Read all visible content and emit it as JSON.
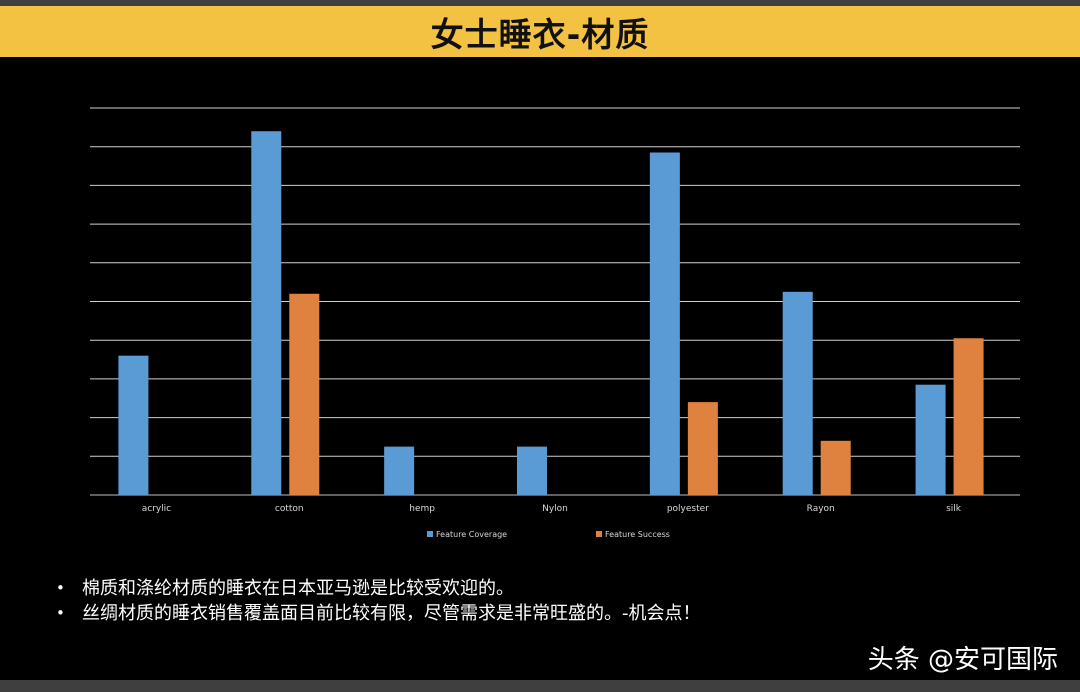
{
  "title": "女士睡衣-材质",
  "chart_data": {
    "type": "bar",
    "categories": [
      "acrylic",
      "cotton",
      "hemp",
      "Nylon",
      "polyester",
      "Rayon",
      "silk"
    ],
    "series": [
      {
        "name": "Feature Coverage",
        "color": "#5b9bd5",
        "values": [
          3.6,
          9.4,
          1.25,
          1.25,
          8.85,
          5.25,
          2.85
        ]
      },
      {
        "name": "Feature Success",
        "color": "#e0823f",
        "values": [
          null,
          5.2,
          null,
          null,
          2.4,
          1.4,
          4.05
        ]
      }
    ],
    "ylim": [
      0,
      10
    ],
    "grid": true,
    "legend": "bottom-center"
  },
  "bullets": [
    "棉质和涤纶材质的睡衣在日本亚马逊是比较受欢迎的。",
    "丝绸材质的睡衣销售覆盖面目前比较有限，尽管需求是非常旺盛的。-机会点！"
  ],
  "bullet_symbol": "•",
  "watermark": "头条 @安可国际"
}
